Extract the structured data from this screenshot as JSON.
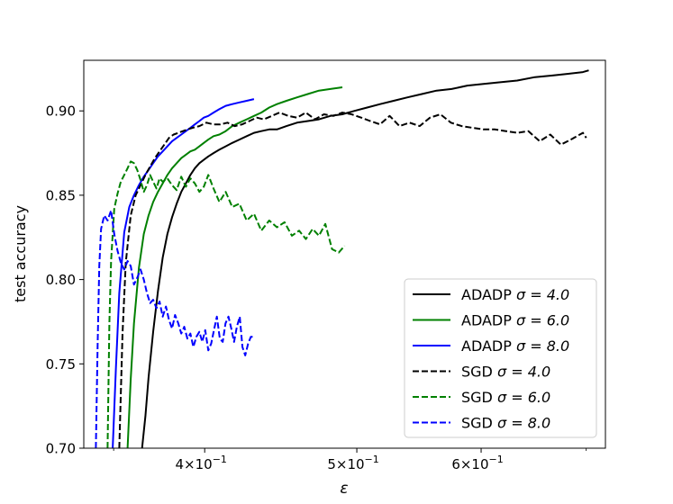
{
  "chart_data": {
    "type": "line",
    "title": "",
    "xlabel": "ε",
    "ylabel": "test accuracy",
    "xscale": "log",
    "xlim": [
      0.335,
      0.72
    ],
    "ylim": [
      0.7,
      0.93
    ],
    "grid": false,
    "legend_position": "lower-right",
    "xticks": [
      {
        "value": 0.4,
        "base": "4×10",
        "exp": "−1"
      },
      {
        "value": 0.5,
        "base": "5×10",
        "exp": "−1"
      },
      {
        "value": 0.6,
        "base": "6×10",
        "exp": "−1"
      }
    ],
    "yticks": [
      {
        "value": 0.7,
        "label": "0.70"
      },
      {
        "value": 0.75,
        "label": "0.75"
      },
      {
        "value": 0.8,
        "label": "0.80"
      },
      {
        "value": 0.85,
        "label": "0.85"
      },
      {
        "value": 0.9,
        "label": "0.90"
      }
    ],
    "colors": {
      "black": "#000000",
      "green": "#008000",
      "blue": "#0000ff"
    },
    "series": [
      {
        "name": "ADADP σ = 4.0",
        "label_prefix": "ADADP",
        "sigma_text": "σ = 4.0",
        "color": "#000000",
        "dash": "solid",
        "x": [
          0.3649,
          0.3667,
          0.3684,
          0.3709,
          0.3735,
          0.3761,
          0.3787,
          0.3813,
          0.3839,
          0.3865,
          0.3891,
          0.3917,
          0.3943,
          0.3969,
          0.3995,
          0.4021,
          0.4052,
          0.4087,
          0.4125,
          0.4165,
          0.4209,
          0.4254,
          0.43,
          0.4346,
          0.4397,
          0.4447,
          0.451,
          0.458,
          0.4653,
          0.473,
          0.481,
          0.4895,
          0.4983,
          0.5076,
          0.5174,
          0.5277,
          0.5386,
          0.55,
          0.562,
          0.5746,
          0.588,
          0.6021,
          0.617,
          0.6326,
          0.6493,
          0.6662,
          0.6818,
          0.6966,
          0.7026
        ],
        "y": [
          0.7,
          0.719,
          0.742,
          0.769,
          0.793,
          0.813,
          0.827,
          0.837,
          0.845,
          0.852,
          0.857,
          0.862,
          0.866,
          0.869,
          0.871,
          0.873,
          0.875,
          0.877,
          0.879,
          0.881,
          0.883,
          0.885,
          0.887,
          0.888,
          0.889,
          0.889,
          0.891,
          0.893,
          0.894,
          0.895,
          0.897,
          0.898,
          0.9,
          0.902,
          0.904,
          0.906,
          0.908,
          0.91,
          0.912,
          0.913,
          0.915,
          0.916,
          0.917,
          0.918,
          0.92,
          0.921,
          0.922,
          0.923,
          0.924
        ]
      },
      {
        "name": "ADADP σ = 6.0",
        "label_prefix": "ADADP",
        "sigma_text": "σ = 6.0",
        "color": "#008000",
        "dash": "solid",
        "x": [
          0.3572,
          0.3589,
          0.3606,
          0.3632,
          0.3658,
          0.3684,
          0.3709,
          0.3735,
          0.3761,
          0.3787,
          0.3813,
          0.3839,
          0.3865,
          0.3891,
          0.3917,
          0.3943,
          0.3969,
          0.3995,
          0.4021,
          0.4052,
          0.4087,
          0.4125,
          0.4165,
          0.4209,
          0.4254,
          0.43,
          0.4346,
          0.4397,
          0.4447,
          0.451,
          0.458,
          0.4653,
          0.473,
          0.481,
          0.4895
        ],
        "y": [
          0.7,
          0.741,
          0.774,
          0.807,
          0.827,
          0.838,
          0.846,
          0.852,
          0.857,
          0.862,
          0.866,
          0.869,
          0.872,
          0.874,
          0.876,
          0.877,
          0.879,
          0.881,
          0.883,
          0.885,
          0.886,
          0.888,
          0.891,
          0.893,
          0.895,
          0.897,
          0.899,
          0.902,
          0.904,
          0.906,
          0.908,
          0.91,
          0.912,
          0.913,
          0.914
        ]
      },
      {
        "name": "ADADP σ = 8.0",
        "label_prefix": "ADADP",
        "sigma_text": "σ = 8.0",
        "color": "#0000ff",
        "dash": "solid",
        "x": [
          0.3495,
          0.3512,
          0.3529,
          0.3555,
          0.3581,
          0.3606,
          0.3632,
          0.3658,
          0.3684,
          0.3709,
          0.3735,
          0.3761,
          0.3787,
          0.3813,
          0.3839,
          0.3865,
          0.3891,
          0.3917,
          0.3943,
          0.3969,
          0.3995,
          0.4021,
          0.4052,
          0.4087,
          0.4125,
          0.4165,
          0.4209,
          0.4254,
          0.43
        ],
        "y": [
          0.7,
          0.748,
          0.792,
          0.828,
          0.843,
          0.85,
          0.856,
          0.861,
          0.865,
          0.869,
          0.873,
          0.876,
          0.879,
          0.882,
          0.884,
          0.886,
          0.888,
          0.89,
          0.892,
          0.894,
          0.896,
          0.897,
          0.899,
          0.901,
          0.903,
          0.904,
          0.905,
          0.906,
          0.907
        ]
      },
      {
        "name": "SGD σ = 4.0",
        "label_prefix": "SGD",
        "sigma_text": "σ = 4.0",
        "color": "#000000",
        "dash": "dashed",
        "x": [
          0.3529,
          0.3546,
          0.3563,
          0.3589,
          0.3615,
          0.3641,
          0.3667,
          0.3692,
          0.3718,
          0.3744,
          0.377,
          0.3796,
          0.3822,
          0.3848,
          0.3874,
          0.39,
          0.393,
          0.3969,
          0.401,
          0.4052,
          0.4093,
          0.4136,
          0.418,
          0.4226,
          0.4271,
          0.4317,
          0.4363,
          0.4414,
          0.4464,
          0.4522,
          0.458,
          0.464,
          0.4702,
          0.4765,
          0.483,
          0.4895,
          0.4962,
          0.5032,
          0.51,
          0.5173,
          0.5247,
          0.5323,
          0.5402,
          0.5483,
          0.5567,
          0.5653,
          0.574,
          0.5831,
          0.5924,
          0.6021,
          0.612,
          0.6223,
          0.6326,
          0.6431,
          0.6538,
          0.6641,
          0.6744,
          0.6844,
          0.6966,
          0.7
        ],
        "y": [
          0.7,
          0.768,
          0.81,
          0.838,
          0.85,
          0.856,
          0.862,
          0.867,
          0.872,
          0.876,
          0.88,
          0.884,
          0.886,
          0.887,
          0.888,
          0.889,
          0.89,
          0.891,
          0.893,
          0.892,
          0.892,
          0.893,
          0.891,
          0.892,
          0.894,
          0.896,
          0.895,
          0.897,
          0.899,
          0.897,
          0.896,
          0.899,
          0.895,
          0.898,
          0.897,
          0.899,
          0.898,
          0.896,
          0.894,
          0.892,
          0.897,
          0.891,
          0.893,
          0.891,
          0.896,
          0.898,
          0.893,
          0.891,
          0.89,
          0.889,
          0.889,
          0.888,
          0.887,
          0.888,
          0.882,
          0.886,
          0.88,
          0.883,
          0.887,
          0.884
        ]
      },
      {
        "name": "SGD σ = 6.0",
        "label_prefix": "SGD",
        "sigma_text": "σ = 6.0",
        "color": "#008000",
        "dash": "dashed",
        "x": [
          0.3469,
          0.3478,
          0.3487,
          0.3503,
          0.352,
          0.3537,
          0.3555,
          0.3572,
          0.3589,
          0.3606,
          0.3623,
          0.3641,
          0.3658,
          0.3675,
          0.3692,
          0.3709,
          0.3727,
          0.3744,
          0.3761,
          0.3787,
          0.3813,
          0.3839,
          0.3865,
          0.3891,
          0.3917,
          0.3943,
          0.3969,
          0.3995,
          0.4021,
          0.4052,
          0.4087,
          0.4125,
          0.4165,
          0.4209,
          0.4254,
          0.43,
          0.4346,
          0.4397,
          0.4447,
          0.4497,
          0.4546,
          0.4594,
          0.464,
          0.4686,
          0.473,
          0.4774,
          0.4822,
          0.4869,
          0.4911
        ],
        "y": [
          0.7,
          0.774,
          0.811,
          0.842,
          0.851,
          0.858,
          0.862,
          0.866,
          0.87,
          0.869,
          0.865,
          0.859,
          0.852,
          0.856,
          0.862,
          0.858,
          0.854,
          0.86,
          0.858,
          0.86,
          0.856,
          0.853,
          0.861,
          0.855,
          0.86,
          0.857,
          0.852,
          0.855,
          0.862,
          0.854,
          0.846,
          0.852,
          0.843,
          0.845,
          0.835,
          0.839,
          0.829,
          0.835,
          0.831,
          0.834,
          0.826,
          0.829,
          0.824,
          0.83,
          0.826,
          0.833,
          0.818,
          0.816,
          0.82
        ]
      },
      {
        "name": "SGD σ = 8.0",
        "label_prefix": "SGD",
        "sigma_text": "σ = 8.0",
        "color": "#0000ff",
        "dash": "dashed",
        "x": [
          0.341,
          0.3419,
          0.3427,
          0.3436,
          0.3452,
          0.3469,
          0.3487,
          0.3503,
          0.352,
          0.3537,
          0.3555,
          0.3572,
          0.3589,
          0.3606,
          0.3623,
          0.3641,
          0.3658,
          0.3675,
          0.3692,
          0.3709,
          0.3727,
          0.3744,
          0.3761,
          0.3779,
          0.3796,
          0.3813,
          0.383,
          0.3848,
          0.3865,
          0.3882,
          0.39,
          0.3917,
          0.3934,
          0.3951,
          0.3969,
          0.3986,
          0.4003,
          0.4021,
          0.4038,
          0.4055,
          0.4072,
          0.409,
          0.4107,
          0.4124,
          0.4142,
          0.4159,
          0.4176,
          0.4193,
          0.4211,
          0.4228,
          0.4245,
          0.4263,
          0.428,
          0.4297
        ],
        "y": [
          0.7,
          0.762,
          0.808,
          0.83,
          0.838,
          0.835,
          0.841,
          0.827,
          0.817,
          0.81,
          0.806,
          0.811,
          0.808,
          0.797,
          0.801,
          0.806,
          0.8,
          0.792,
          0.786,
          0.788,
          0.783,
          0.787,
          0.778,
          0.784,
          0.776,
          0.771,
          0.779,
          0.774,
          0.768,
          0.772,
          0.765,
          0.768,
          0.76,
          0.766,
          0.769,
          0.763,
          0.77,
          0.758,
          0.762,
          0.77,
          0.778,
          0.765,
          0.763,
          0.774,
          0.778,
          0.771,
          0.763,
          0.772,
          0.778,
          0.76,
          0.755,
          0.762,
          0.766,
          0.766
        ]
      }
    ]
  }
}
